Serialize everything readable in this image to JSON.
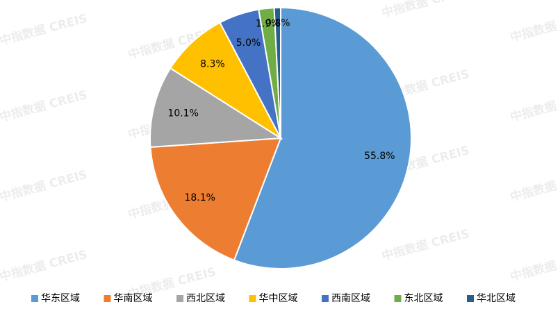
{
  "chart_data": {
    "type": "pie",
    "categories": [
      "华东区域",
      "华南区域",
      "西北区域",
      "华中区域",
      "西南区域",
      "东北区域",
      "华北区域"
    ],
    "values": [
      55.8,
      18.1,
      10.1,
      8.3,
      5.0,
      1.9,
      0.8
    ],
    "value_labels": [
      "55.8%",
      "18.1%",
      "10.1%",
      "8.3%",
      "5.0%",
      "1.9%",
      "0.8%"
    ],
    "colors": [
      "#5b9bd5",
      "#ed7d31",
      "#a5a5a5",
      "#ffc000",
      "#4472c4",
      "#70ad47",
      "#255e91"
    ],
    "legend": "bottom",
    "watermark": "中指数据 CREIS"
  }
}
